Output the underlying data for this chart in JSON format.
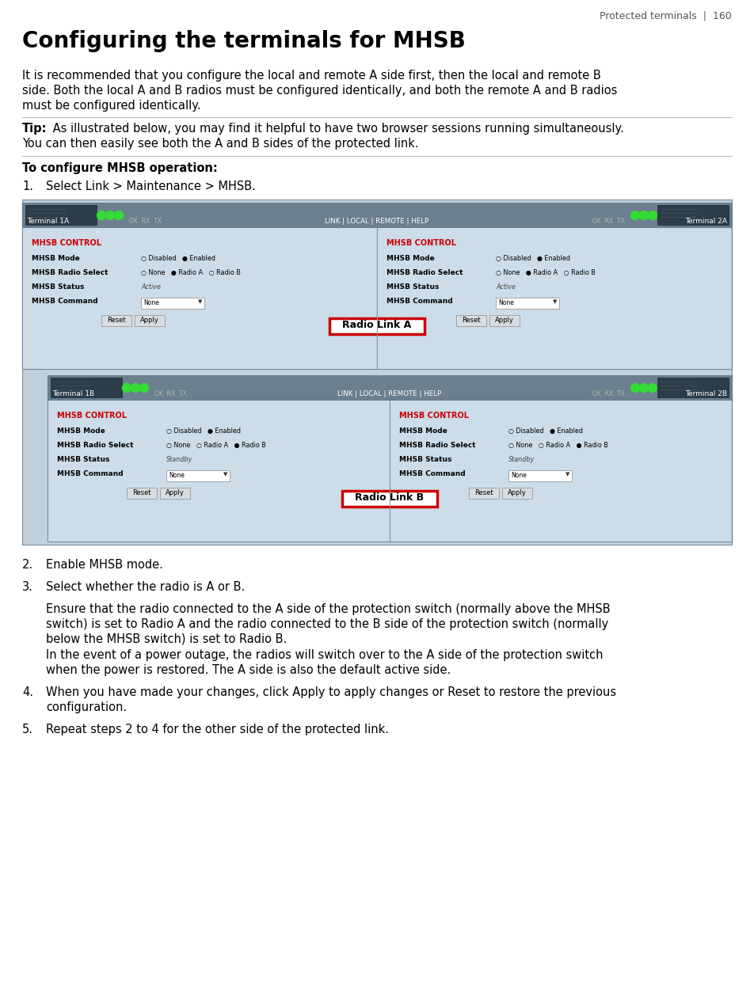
{
  "page_title": "Protected terminals  |  160",
  "section_title": "Configuring the terminals for MHSB",
  "intro_line1": "It is recommended that you configure the local and remote A side first, then the local and remote B",
  "intro_line2": "side. Both the local A and B radios must be configured identically, and both the remote A and B radios",
  "intro_line3": "must be configured identically.",
  "tip_label": "Tip:",
  "tip_line1": " As illustrated below, you may find it helpful to have two browser sessions running simultaneously.",
  "tip_line2": "You can then easily see both the A and B sides of the protected link.",
  "config_title": "To configure MHSB operation:",
  "step1_text": "Select Link > Maintenance > MHSB.",
  "step2_text": "Enable MHSB mode.",
  "step3_text": "Select whether the radio is A or B.",
  "step3sub1_line1": "Ensure that the radio connected to the A side of the protection switch (normally above the MHSB",
  "step3sub1_line2": "switch) is set to Radio A and the radio connected to the B side of the protection switch (normally",
  "step3sub1_line3": "below the MHSB switch) is set to Radio B.",
  "step3sub2_line1": "In the event of a power outage, the radios will switch over to the A side of the protection switch",
  "step3sub2_line2": "when the power is restored. The A side is also the default active side.",
  "step4_line1": "When you have made your changes, click Apply to apply changes or Reset to restore the previous",
  "step4_line2": "configuration.",
  "step5_text": "Repeat steps 2 to 4 for the other side of the protected link.",
  "bg_color": "#ffffff",
  "text_color": "#000000",
  "mhsb_red": "#cc0000",
  "radio_link_a": "Radio Link A",
  "radio_link_b": "Radio Link B",
  "ss_bg": "#c0d0dc",
  "header_bar": "#6b7f8e",
  "panel_bg": "#ccdce8",
  "line_color": "#999999"
}
